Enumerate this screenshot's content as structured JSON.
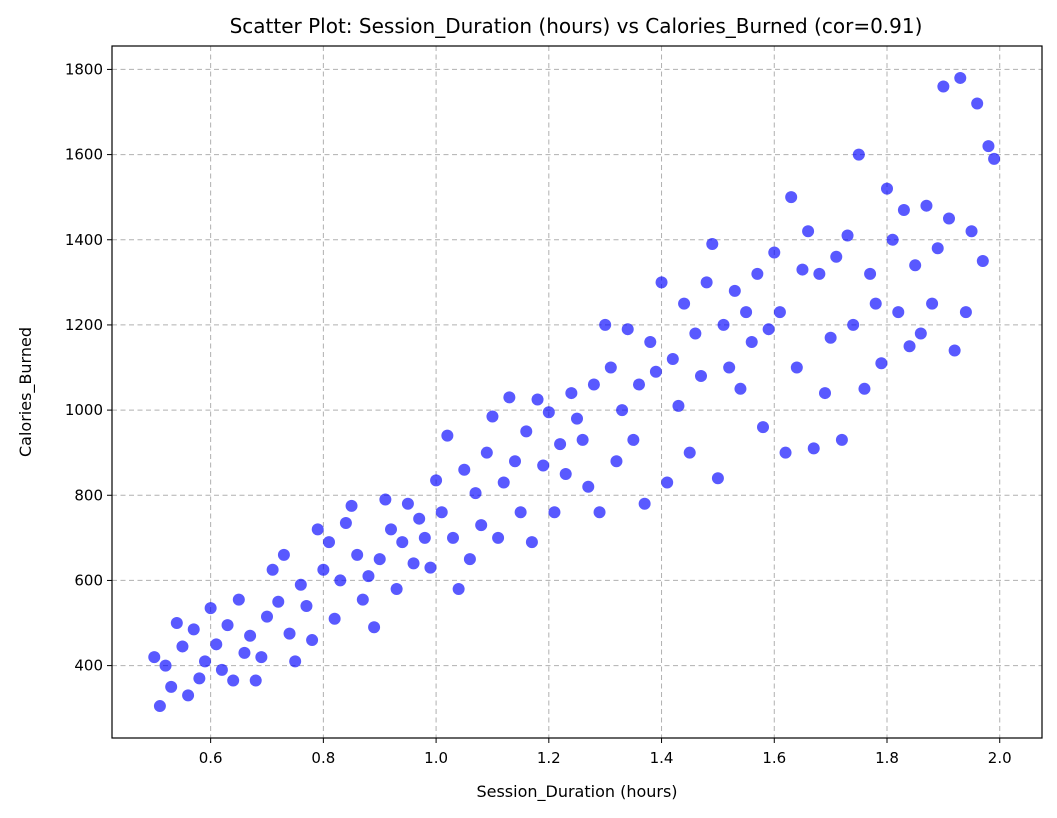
{
  "chart_data": {
    "type": "scatter",
    "title": "Scatter Plot: Session_Duration (hours) vs Calories_Burned (cor=0.91)",
    "xlabel": "Session_Duration (hours)",
    "ylabel": "Calories_Burned",
    "xlim": [
      0.425,
      2.075
    ],
    "ylim": [
      230,
      1855
    ],
    "xticks": [
      0.6,
      0.8,
      1.0,
      1.2,
      1.4,
      1.6,
      1.8,
      2.0
    ],
    "xtick_labels": [
      "0.6",
      "0.8",
      "1.0",
      "1.2",
      "1.4",
      "1.6",
      "1.8",
      "2.0"
    ],
    "yticks": [
      400,
      600,
      800,
      1000,
      1200,
      1400,
      1600,
      1800
    ],
    "ytick_labels": [
      "400",
      "600",
      "800",
      "1000",
      "1200",
      "1400",
      "1600",
      "1800"
    ],
    "grid": true,
    "marker_color": "#0000ff",
    "marker_opacity": 0.65,
    "points": [
      [
        0.5,
        420
      ],
      [
        0.51,
        305
      ],
      [
        0.52,
        400
      ],
      [
        0.53,
        350
      ],
      [
        0.54,
        500
      ],
      [
        0.55,
        445
      ],
      [
        0.56,
        330
      ],
      [
        0.57,
        485
      ],
      [
        0.58,
        370
      ],
      [
        0.59,
        410
      ],
      [
        0.6,
        535
      ],
      [
        0.61,
        450
      ],
      [
        0.62,
        390
      ],
      [
        0.63,
        495
      ],
      [
        0.64,
        365
      ],
      [
        0.65,
        555
      ],
      [
        0.66,
        430
      ],
      [
        0.67,
        470
      ],
      [
        0.68,
        365
      ],
      [
        0.69,
        420
      ],
      [
        0.7,
        515
      ],
      [
        0.71,
        625
      ],
      [
        0.72,
        550
      ],
      [
        0.73,
        660
      ],
      [
        0.74,
        475
      ],
      [
        0.75,
        410
      ],
      [
        0.76,
        590
      ],
      [
        0.77,
        540
      ],
      [
        0.78,
        460
      ],
      [
        0.79,
        720
      ],
      [
        0.8,
        625
      ],
      [
        0.81,
        690
      ],
      [
        0.82,
        510
      ],
      [
        0.83,
        600
      ],
      [
        0.84,
        735
      ],
      [
        0.85,
        775
      ],
      [
        0.86,
        660
      ],
      [
        0.87,
        555
      ],
      [
        0.88,
        610
      ],
      [
        0.89,
        490
      ],
      [
        0.9,
        650
      ],
      [
        0.91,
        790
      ],
      [
        0.92,
        720
      ],
      [
        0.93,
        580
      ],
      [
        0.94,
        690
      ],
      [
        0.95,
        780
      ],
      [
        0.96,
        640
      ],
      [
        0.97,
        745
      ],
      [
        0.98,
        700
      ],
      [
        0.99,
        630
      ],
      [
        1.0,
        835
      ],
      [
        1.01,
        760
      ],
      [
        1.02,
        940
      ],
      [
        1.03,
        700
      ],
      [
        1.04,
        580
      ],
      [
        1.05,
        860
      ],
      [
        1.06,
        650
      ],
      [
        1.07,
        805
      ],
      [
        1.08,
        730
      ],
      [
        1.09,
        900
      ],
      [
        1.1,
        985
      ],
      [
        1.11,
        700
      ],
      [
        1.12,
        830
      ],
      [
        1.13,
        1030
      ],
      [
        1.14,
        880
      ],
      [
        1.15,
        760
      ],
      [
        1.16,
        950
      ],
      [
        1.17,
        690
      ],
      [
        1.18,
        1025
      ],
      [
        1.19,
        870
      ],
      [
        1.2,
        995
      ],
      [
        1.21,
        760
      ],
      [
        1.22,
        920
      ],
      [
        1.23,
        850
      ],
      [
        1.24,
        1040
      ],
      [
        1.25,
        980
      ],
      [
        1.26,
        930
      ],
      [
        1.27,
        820
      ],
      [
        1.28,
        1060
      ],
      [
        1.29,
        760
      ],
      [
        1.3,
        1200
      ],
      [
        1.31,
        1100
      ],
      [
        1.32,
        880
      ],
      [
        1.33,
        1000
      ],
      [
        1.34,
        1190
      ],
      [
        1.35,
        930
      ],
      [
        1.36,
        1060
      ],
      [
        1.37,
        780
      ],
      [
        1.38,
        1160
      ],
      [
        1.39,
        1090
      ],
      [
        1.4,
        1300
      ],
      [
        1.41,
        830
      ],
      [
        1.42,
        1120
      ],
      [
        1.43,
        1010
      ],
      [
        1.44,
        1250
      ],
      [
        1.45,
        900
      ],
      [
        1.46,
        1180
      ],
      [
        1.47,
        1080
      ],
      [
        1.48,
        1300
      ],
      [
        1.49,
        1390
      ],
      [
        1.5,
        840
      ],
      [
        1.51,
        1200
      ],
      [
        1.52,
        1100
      ],
      [
        1.53,
        1280
      ],
      [
        1.54,
        1050
      ],
      [
        1.55,
        1230
      ],
      [
        1.56,
        1160
      ],
      [
        1.57,
        1320
      ],
      [
        1.58,
        960
      ],
      [
        1.59,
        1190
      ],
      [
        1.6,
        1370
      ],
      [
        1.61,
        1230
      ],
      [
        1.62,
        900
      ],
      [
        1.63,
        1500
      ],
      [
        1.64,
        1100
      ],
      [
        1.65,
        1330
      ],
      [
        1.66,
        1420
      ],
      [
        1.67,
        910
      ],
      [
        1.68,
        1320
      ],
      [
        1.69,
        1040
      ],
      [
        1.7,
        1170
      ],
      [
        1.71,
        1360
      ],
      [
        1.72,
        930
      ],
      [
        1.73,
        1410
      ],
      [
        1.74,
        1200
      ],
      [
        1.75,
        1600
      ],
      [
        1.76,
        1050
      ],
      [
        1.77,
        1320
      ],
      [
        1.78,
        1250
      ],
      [
        1.79,
        1110
      ],
      [
        1.8,
        1520
      ],
      [
        1.81,
        1400
      ],
      [
        1.82,
        1230
      ],
      [
        1.83,
        1470
      ],
      [
        1.84,
        1150
      ],
      [
        1.85,
        1340
      ],
      [
        1.86,
        1180
      ],
      [
        1.87,
        1480
      ],
      [
        1.88,
        1250
      ],
      [
        1.89,
        1380
      ],
      [
        1.9,
        1760
      ],
      [
        1.91,
        1450
      ],
      [
        1.92,
        1140
      ],
      [
        1.93,
        1780
      ],
      [
        1.94,
        1230
      ],
      [
        1.95,
        1420
      ],
      [
        1.96,
        1720
      ],
      [
        1.97,
        1350
      ],
      [
        1.98,
        1620
      ],
      [
        1.99,
        1590
      ]
    ]
  }
}
